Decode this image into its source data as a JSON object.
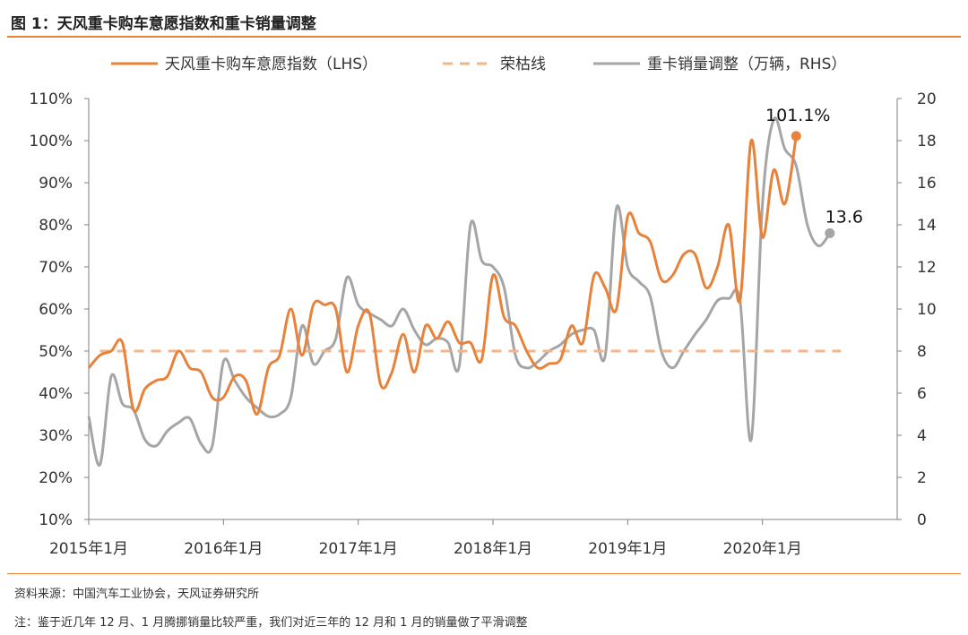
{
  "title": "图 1：天风重卡购车意愿指数和重卡销量调整",
  "source": "资料来源：中国汽车工业协会，天风证券研究所",
  "note": "注：鉴于近几年 12 月、1 月腾挪销量比较严重，我们对近三年的 12 月和 1 月的销量做了平滑调整",
  "colors": {
    "index": "#E8823A",
    "rongku": "#F2B48A",
    "sales": "#A5A5A5",
    "axis": "#7F7F7F"
  },
  "chart_data": {
    "type": "line",
    "x_unit": "month index from 2015年1月",
    "x_ticks": [
      {
        "x": 0,
        "label": "2015年1月"
      },
      {
        "x": 12,
        "label": "2016年1月"
      },
      {
        "x": 24,
        "label": "2017年1月"
      },
      {
        "x": 36,
        "label": "2018年1月"
      },
      {
        "x": 48,
        "label": "2019年1月"
      },
      {
        "x": 60,
        "label": "2020年1月"
      }
    ],
    "xlim": [
      0,
      72
    ],
    "y_left": {
      "ylim": [
        10,
        110
      ],
      "ticks": [
        "10%",
        "20%",
        "30%",
        "40%",
        "50%",
        "60%",
        "70%",
        "80%",
        "90%",
        "100%",
        "110%"
      ]
    },
    "y_right": {
      "ylim": [
        0,
        20
      ],
      "ticks": [
        "0",
        "2",
        "4",
        "6",
        "8",
        "10",
        "12",
        "14",
        "16",
        "18",
        "20"
      ]
    },
    "series": [
      {
        "name": "天风重卡购车意愿指数（LHS）",
        "axis": "left",
        "style": "solid",
        "values": [
          46,
          49,
          50,
          52,
          36,
          41,
          43,
          44,
          50,
          46,
          45,
          39,
          39,
          44,
          43,
          35,
          46,
          49,
          60,
          49,
          61,
          61,
          60,
          45,
          56,
          59,
          42,
          45,
          54,
          45,
          56,
          53,
          57,
          52,
          52,
          48,
          68,
          58,
          56,
          50,
          46,
          47,
          48,
          56,
          52,
          68,
          65,
          60,
          82,
          78,
          76,
          67,
          68,
          73,
          73,
          65,
          70,
          80,
          62,
          100,
          77,
          93,
          85,
          101.1
        ],
        "end_label": "101.1%"
      },
      {
        "name": "荣枯线",
        "axis": "left",
        "style": "dashed",
        "values": [
          50,
          50
        ],
        "x": [
          1,
          67
        ]
      },
      {
        "name": "重卡销量调整（万辆，RHS）",
        "axis": "right",
        "style": "solid",
        "values": [
          4.9,
          2.6,
          6.8,
          5.5,
          5.2,
          3.8,
          3.5,
          4.2,
          4.6,
          4.8,
          3.6,
          3.5,
          7.5,
          6.6,
          5.8,
          5.3,
          4.9,
          5.0,
          5.8,
          9.2,
          7.4,
          8.0,
          8.6,
          11.5,
          10.2,
          9.8,
          9.5,
          9.2,
          10.0,
          9.0,
          8.3,
          8.6,
          8.4,
          7.3,
          14.0,
          12.3,
          12.0,
          11.0,
          7.8,
          7.2,
          7.5,
          8.0,
          8.3,
          8.8,
          9.0,
          9.0,
          7.8,
          14.8,
          12.0,
          11.3,
          10.6,
          8.0,
          7.2,
          8.0,
          8.8,
          9.5,
          10.4,
          10.5,
          10.4,
          3.8,
          15.0,
          19.0,
          17.6,
          16.8,
          14.0,
          13.0,
          13.6
        ],
        "end_label": "13.6"
      }
    ]
  }
}
